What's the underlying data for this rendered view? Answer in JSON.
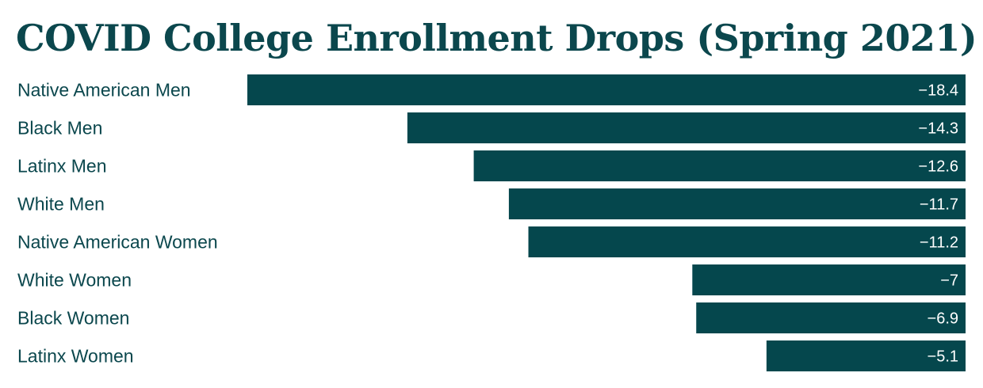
{
  "chart_data": {
    "type": "bar",
    "orientation": "horizontal",
    "title": "COVID College Enrollment Drops (Spring 2021)",
    "categories": [
      "Native American Men",
      "Black Men",
      "Latinx Men",
      "White Men",
      "Native American Women",
      "White Women",
      "Black Women",
      "Latinx Women"
    ],
    "values": [
      -18.4,
      -14.3,
      -12.6,
      -11.7,
      -11.2,
      -7,
      -6.9,
      -5.1
    ],
    "value_labels": [
      "−18.4",
      "−14.3",
      "−12.6",
      "−11.7",
      "−11.2",
      "−7",
      "−6.9",
      "−5.1"
    ],
    "xlim": [
      -18.4,
      0
    ],
    "grid": false,
    "legend": "none",
    "bar_color": "#05474d",
    "text_color": "#0b474d"
  }
}
